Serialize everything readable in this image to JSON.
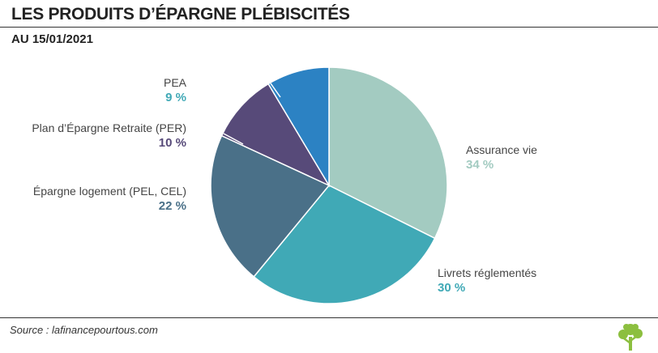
{
  "header": {
    "title": "LES PRODUITS D’ÉPARGNE PLÉBISCITÉS",
    "subtitle": "AU 15/01/2021"
  },
  "footer": {
    "source": "Source : lafinancepourtous.com",
    "logo_icon": "tree-icon"
  },
  "chart_data": {
    "type": "pie",
    "slices": [
      {
        "label": "Assurance vie",
        "value": 34,
        "display": "34 %",
        "color": "#a3cbc1"
      },
      {
        "label": "Livrets réglementés",
        "value": 30,
        "display": "30 %",
        "color": "#40a9b6"
      },
      {
        "label": "Épargne logement (PEL, CEL)",
        "value": 22,
        "display": "22 %",
        "color": "#4a7088"
      },
      {
        "label": "Plan d’Épargne Retraite (PER)",
        "value": 10,
        "display": "10 %",
        "color": "#574a79"
      },
      {
        "label": "PEA",
        "value": 9,
        "display": "9 %",
        "color": "#2c82c3"
      }
    ],
    "start": "12 o'clock",
    "direction": "clockwise"
  }
}
